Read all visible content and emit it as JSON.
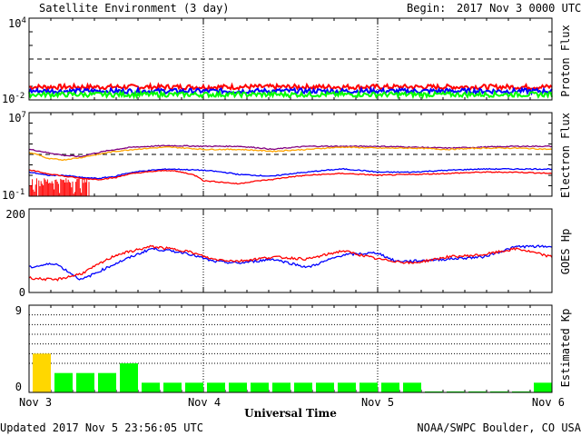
{
  "header": {
    "title": "Satellite Environment (3 day)",
    "begin_label": "Begin:",
    "begin_value": "2017 Nov 3 0000 UTC"
  },
  "footer": {
    "updated": "Updated 2017 Nov  5 23:56:05 UTC",
    "source": "NOAA/SWPC Boulder, CO USA"
  },
  "xaxis": {
    "title": "Universal Time",
    "ticks": [
      "Nov 3",
      "Nov 4",
      "Nov 5",
      "Nov 6"
    ],
    "range_days": [
      0,
      3
    ]
  },
  "colors": {
    "red": "#ff0000",
    "blue": "#0000ff",
    "green": "#00ff00",
    "orange": "#ffa500",
    "purple": "#800080",
    "yellow": "#ffd700"
  },
  "chart_data": [
    {
      "type": "line",
      "ylabel": "Proton Flux",
      "scale": "log",
      "ylim": [
        0.01,
        10000
      ],
      "ytick_labels": [
        {
          "base": "10",
          "exp": "4"
        },
        {
          "base": "10",
          "exp": "-2"
        }
      ],
      "threshold": 10,
      "x_days": [
        0,
        0.5,
        1,
        1.5,
        2,
        2.5,
        3
      ],
      "series": [
        {
          "color": "#ff0000",
          "values": [
            0.09,
            0.09,
            0.09,
            0.09,
            0.09,
            0.09,
            0.09
          ]
        },
        {
          "color": "#0000ff",
          "values": [
            0.045,
            0.045,
            0.045,
            0.045,
            0.045,
            0.045,
            0.045
          ]
        },
        {
          "color": "#00ff00",
          "values": [
            0.025,
            0.025,
            0.025,
            0.025,
            0.025,
            0.025,
            0.025
          ]
        }
      ]
    },
    {
      "type": "line",
      "ylabel": "Electron Flux",
      "scale": "log",
      "ylim": [
        0.1,
        10000000
      ],
      "ytick_labels": [
        {
          "base": "10",
          "exp": "7"
        },
        {
          "base": "10",
          "exp": "-1"
        }
      ],
      "threshold": 1000,
      "x_days": [
        0,
        0.1,
        0.2,
        0.3,
        0.4,
        0.5,
        0.6,
        0.8,
        1.0,
        1.2,
        1.4,
        1.6,
        1.8,
        2.0,
        2.2,
        2.4,
        2.6,
        2.8,
        3.0
      ],
      "series": [
        {
          "color": "#800080",
          "values": [
            3000,
            1500,
            800,
            600,
            1500,
            3000,
            5000,
            7000,
            6000,
            6000,
            3000,
            6000,
            6000,
            6000,
            5000,
            4000,
            5000,
            6000,
            6000
          ]
        },
        {
          "color": "#ffa500",
          "values": [
            1500,
            400,
            300,
            500,
            1000,
            2000,
            3000,
            5000,
            3000,
            3000,
            2000,
            3000,
            5000,
            4000,
            4000,
            3000,
            4000,
            4000,
            3000
          ]
        },
        {
          "color": "#0000ff",
          "values": [
            20,
            10,
            10,
            6,
            5,
            8,
            20,
            40,
            30,
            12,
            8,
            20,
            40,
            20,
            20,
            30,
            40,
            40,
            40
          ]
        },
        {
          "color": "#ff0000",
          "values": [
            30,
            15,
            8,
            5,
            4,
            6,
            15,
            30,
            3,
            1.5,
            4,
            10,
            15,
            10,
            12,
            15,
            20,
            20,
            15
          ]
        }
      ],
      "noise": {
        "color": "#ff0000",
        "x_start": 0,
        "x_end": 0.35,
        "low": 0.1,
        "high": 1
      }
    },
    {
      "type": "line",
      "ylabel": "GOES Hp",
      "scale": "linear",
      "ylim": [
        0,
        200
      ],
      "ytick_labels": [
        "200",
        "0"
      ],
      "x_days": [
        0,
        0.15,
        0.3,
        0.5,
        0.7,
        0.9,
        1.05,
        1.2,
        1.4,
        1.6,
        1.8,
        2.0,
        2.1,
        2.2,
        2.4,
        2.6,
        2.8,
        3.0
      ],
      "series": [
        {
          "color": "#0000ff",
          "values": [
            60,
            70,
            30,
            70,
            105,
            95,
            75,
            70,
            80,
            60,
            90,
            95,
            75,
            75,
            80,
            85,
            110,
            110
          ]
        },
        {
          "color": "#ff0000",
          "values": [
            35,
            30,
            45,
            90,
            110,
            100,
            80,
            75,
            85,
            80,
            100,
            80,
            75,
            70,
            85,
            90,
            105,
            85
          ]
        }
      ]
    },
    {
      "type": "bar",
      "ylabel": "Estimated Kp",
      "ylim": [
        0,
        9
      ],
      "ytick_labels": [
        "9",
        "0"
      ],
      "gridlines": [
        3,
        4,
        5,
        6,
        7,
        8
      ],
      "values": [
        4,
        2,
        2,
        2,
        3,
        1,
        1,
        1,
        1,
        1,
        1,
        1,
        1,
        1,
        1,
        1,
        1,
        1,
        0.1,
        0.1,
        0.1,
        0.1,
        0.1,
        1
      ],
      "colors": [
        "#ffd700",
        "#00ff00",
        "#00ff00",
        "#00ff00",
        "#00ff00",
        "#00ff00",
        "#00ff00",
        "#00ff00",
        "#00ff00",
        "#00ff00",
        "#00ff00",
        "#00ff00",
        "#00ff00",
        "#00ff00",
        "#00ff00",
        "#00ff00",
        "#00ff00",
        "#00ff00",
        "#00ff00",
        "#00ff00",
        "#00ff00",
        "#00ff00",
        "#00ff00",
        "#00ff00"
      ]
    }
  ]
}
